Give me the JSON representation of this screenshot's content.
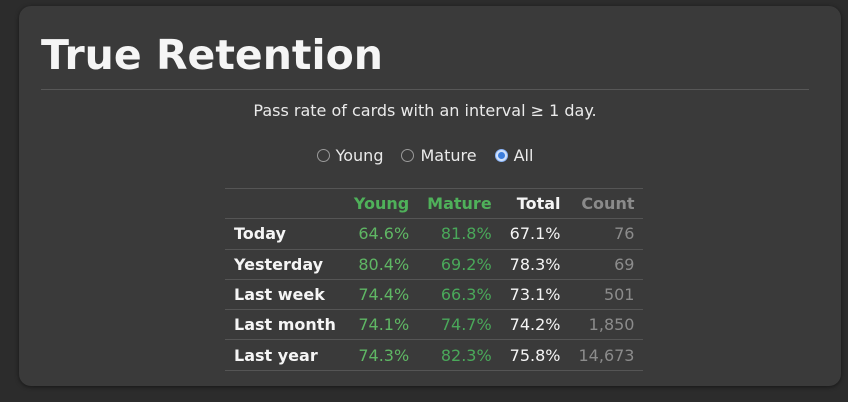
{
  "title": "True Retention",
  "subtitle": "Pass rate of cards with an interval ≥ 1 day.",
  "filter": {
    "options": [
      {
        "label": "Young",
        "checked": false
      },
      {
        "label": "Mature",
        "checked": false
      },
      {
        "label": "All",
        "checked": true
      }
    ]
  },
  "table": {
    "headers": {
      "young": "Young",
      "mature": "Mature",
      "total": "Total",
      "count": "Count"
    },
    "rows": [
      {
        "label": "Today",
        "young": "64.6%",
        "mature": "81.8%",
        "total": "67.1%",
        "count": "76"
      },
      {
        "label": "Yesterday",
        "young": "80.4%",
        "mature": "69.2%",
        "total": "78.3%",
        "count": "69"
      },
      {
        "label": "Last week",
        "young": "74.4%",
        "mature": "66.3%",
        "total": "73.1%",
        "count": "501"
      },
      {
        "label": "Last month",
        "young": "74.1%",
        "mature": "74.7%",
        "total": "74.2%",
        "count": "1,850"
      },
      {
        "label": "Last year",
        "young": "74.3%",
        "mature": "82.3%",
        "total": "75.8%",
        "count": "14,673"
      }
    ]
  },
  "colors": {
    "accent_green": "#4fb15a",
    "count_gray": "#8c8c8c",
    "radio_selected": "#3b7ddd"
  }
}
